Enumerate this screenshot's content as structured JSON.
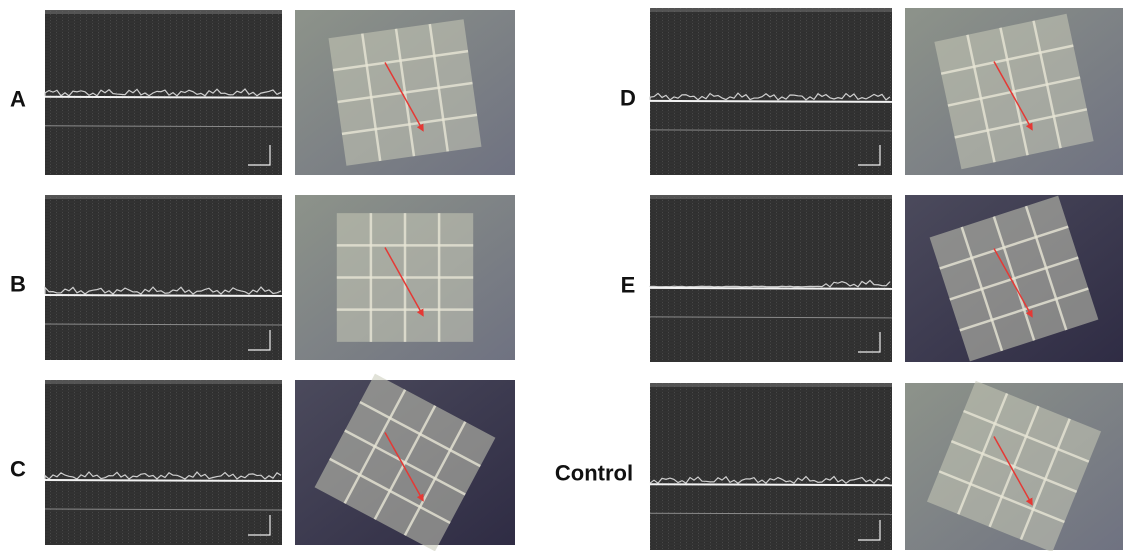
{
  "panels": [
    {
      "label": "A"
    },
    {
      "label": "B"
    },
    {
      "label": "C"
    },
    {
      "label": "D"
    },
    {
      "label": "E"
    },
    {
      "label": "Control"
    }
  ]
}
